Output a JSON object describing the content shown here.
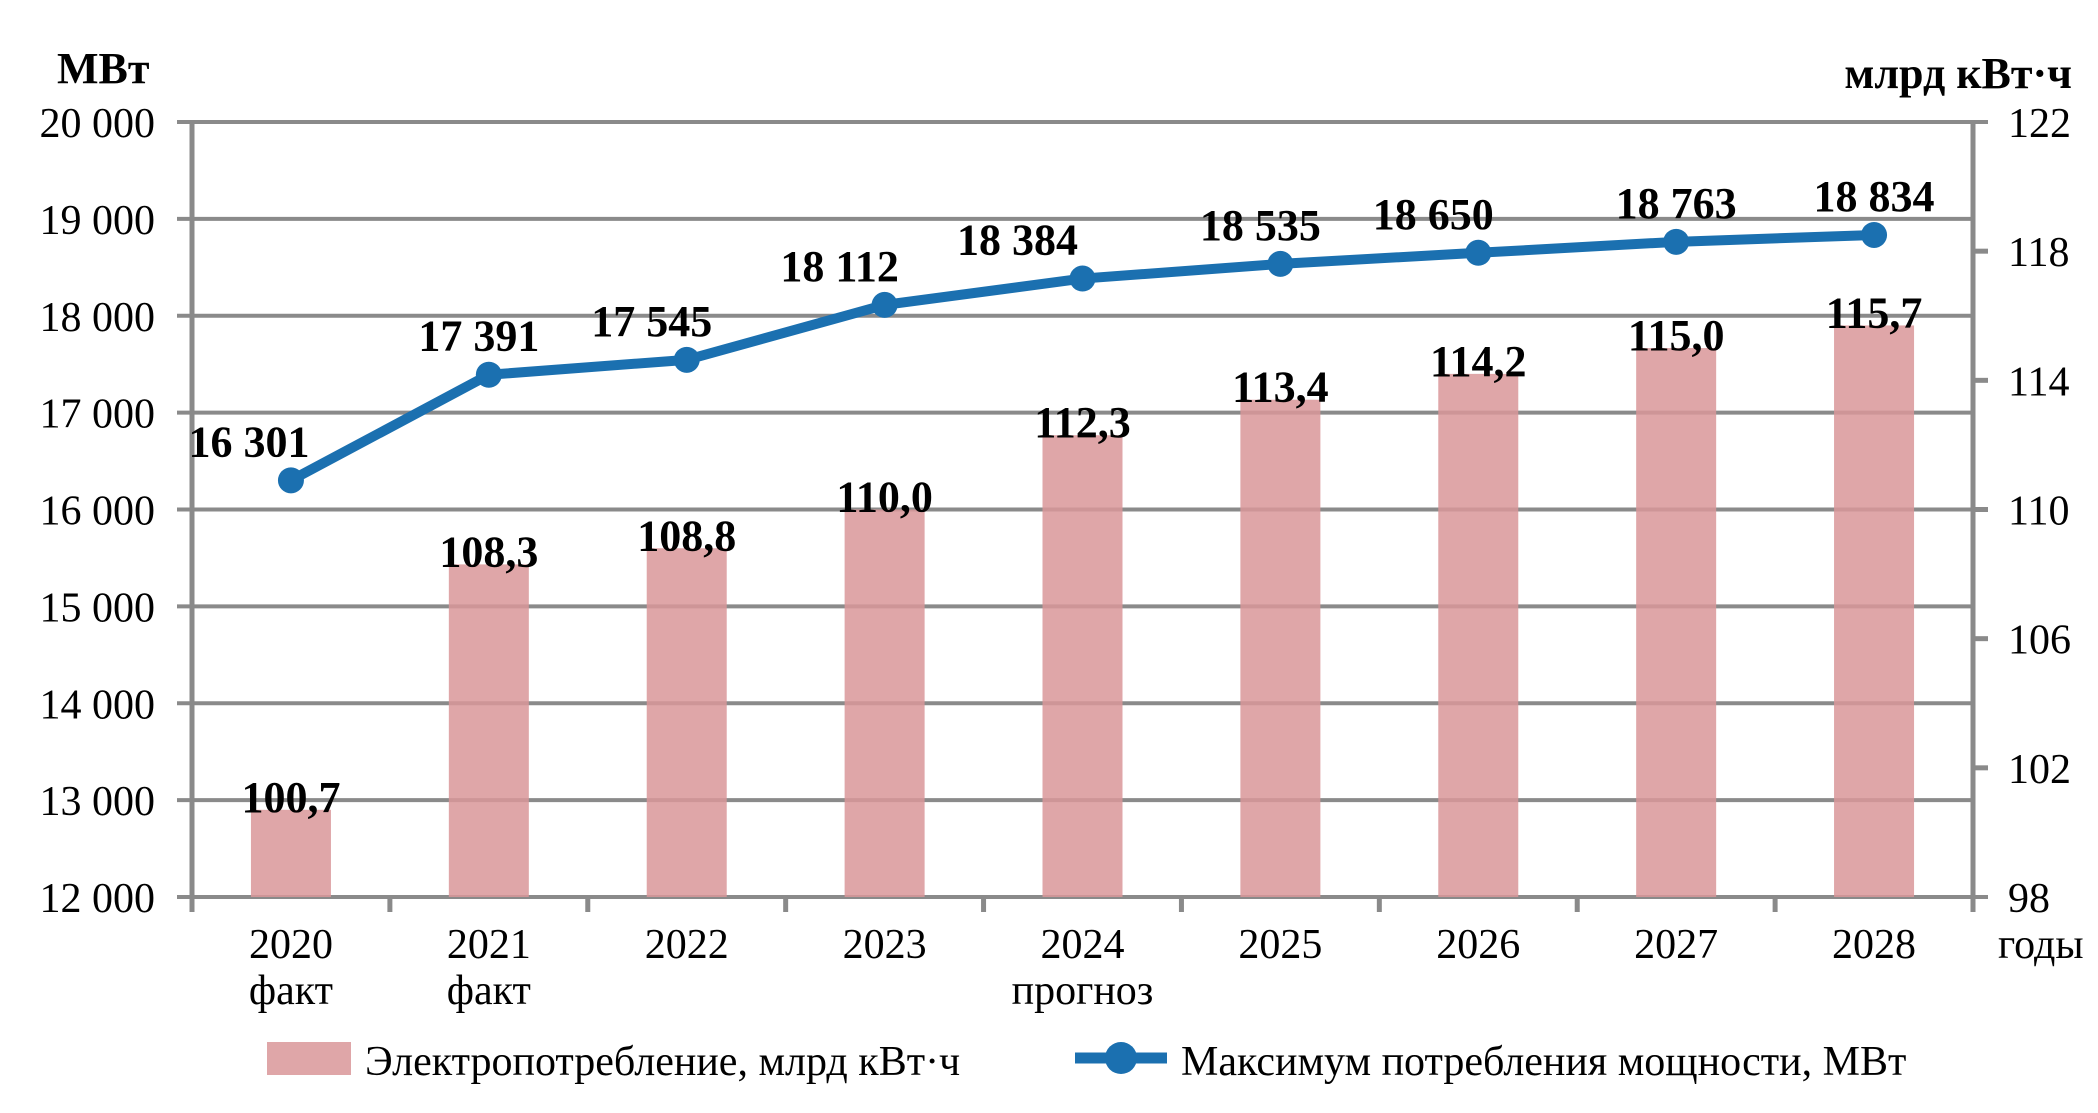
{
  "chart_data": {
    "type": "combo",
    "grid": true,
    "legend_position": "bottom",
    "x_axis_label": "годы",
    "categories": [
      {
        "label": "2020",
        "sublabel": "факт"
      },
      {
        "label": "2021",
        "sublabel": "факт"
      },
      {
        "label": "2022",
        "sublabel": ""
      },
      {
        "label": "2023",
        "sublabel": ""
      },
      {
        "label": "2024",
        "sublabel": "прогноз"
      },
      {
        "label": "2025",
        "sublabel": ""
      },
      {
        "label": "2026",
        "sublabel": ""
      },
      {
        "label": "2027",
        "sublabel": ""
      },
      {
        "label": "2028",
        "sublabel": ""
      }
    ],
    "left_axis": {
      "title": "МВт",
      "min": 12000,
      "max": 20000,
      "ticks": [
        {
          "value": 20000,
          "label": "20 000"
        },
        {
          "value": 19000,
          "label": "19 000"
        },
        {
          "value": 18000,
          "label": "18 000"
        },
        {
          "value": 17000,
          "label": "17 000"
        },
        {
          "value": 16000,
          "label": "16 000"
        },
        {
          "value": 15000,
          "label": "15 000"
        },
        {
          "value": 14000,
          "label": "14 000"
        },
        {
          "value": 13000,
          "label": "13 000"
        },
        {
          "value": 12000,
          "label": "12 000"
        }
      ]
    },
    "right_axis": {
      "title": "млрд кВт·ч",
      "min": 98,
      "max": 122,
      "ticks": [
        {
          "value": 122,
          "label": "122"
        },
        {
          "value": 118,
          "label": "118"
        },
        {
          "value": 114,
          "label": "114"
        },
        {
          "value": 110,
          "label": "110"
        },
        {
          "value": 106,
          "label": "106"
        },
        {
          "value": 102,
          "label": "102"
        },
        {
          "value": 98,
          "label": "98"
        }
      ]
    },
    "series": [
      {
        "name": "Электропотребление, млрд кВт·ч",
        "type": "bar",
        "axis": "right",
        "color": "#D99699",
        "fill_opacity": 0.85,
        "values": [
          100.7,
          108.3,
          108.8,
          110.0,
          112.3,
          113.4,
          114.2,
          115.0,
          115.7
        ],
        "labels": [
          "100,7",
          "108,3",
          "108,8",
          "110,0",
          "112,3",
          "113,4",
          "114,2",
          "115,0",
          "115,7"
        ]
      },
      {
        "name": "Максимум потребления мощности, МВт",
        "type": "line",
        "axis": "left",
        "color": "#1B70B0",
        "values": [
          16301,
          17391,
          17545,
          18112,
          18384,
          18535,
          18650,
          18763,
          18834
        ],
        "labels": [
          "16 301",
          "17 391",
          "17 545",
          "18 112",
          "18 384",
          "18 535",
          "18 650",
          "18 763",
          "18 834"
        ]
      }
    ],
    "colors": {
      "grid": "#8A8A8A",
      "text": "#000000"
    }
  }
}
